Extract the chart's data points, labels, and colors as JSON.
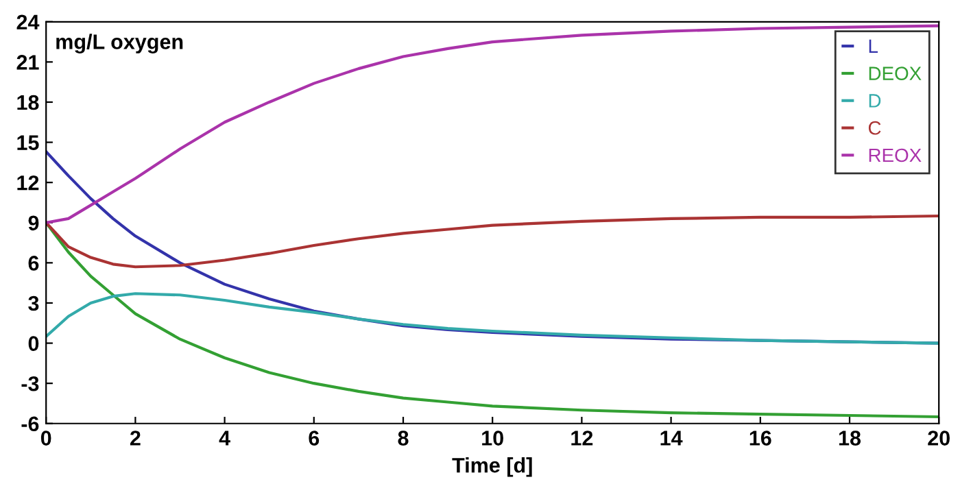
{
  "chart_data": {
    "type": "line",
    "xlabel": "Time [d]",
    "annotations": [
      "mg/L oxygen"
    ],
    "x": [
      0,
      0.5,
      1,
      1.5,
      2,
      3,
      4,
      5,
      6,
      7,
      8,
      9,
      10,
      12,
      14,
      16,
      18,
      20
    ],
    "series": [
      {
        "name": "L",
        "color": "#3333aa",
        "values": [
          14.3,
          12.5,
          10.8,
          9.3,
          8.0,
          6.0,
          4.4,
          3.3,
          2.4,
          1.8,
          1.3,
          1.0,
          0.8,
          0.5,
          0.3,
          0.2,
          0.1,
          0.0
        ]
      },
      {
        "name": "DEOX",
        "color": "#33a033",
        "values": [
          9,
          6.8,
          5.0,
          3.6,
          2.2,
          0.3,
          -1.1,
          -2.2,
          -3.0,
          -3.6,
          -4.1,
          -4.4,
          -4.7,
          -5.0,
          -5.2,
          -5.3,
          -5.4,
          -5.5
        ]
      },
      {
        "name": "D",
        "color": "#33aaaa",
        "values": [
          0.5,
          2.0,
          3.0,
          3.5,
          3.7,
          3.6,
          3.2,
          2.7,
          2.3,
          1.8,
          1.4,
          1.1,
          0.9,
          0.6,
          0.4,
          0.2,
          0.1,
          0.0
        ]
      },
      {
        "name": "C",
        "color": "#aa3333",
        "values": [
          9,
          7.2,
          6.4,
          5.9,
          5.7,
          5.8,
          6.2,
          6.7,
          7.3,
          7.8,
          8.2,
          8.5,
          8.8,
          9.1,
          9.3,
          9.4,
          9.4,
          9.5
        ]
      },
      {
        "name": "REOX",
        "color": "#aa33aa",
        "values": [
          9,
          9.3,
          10.3,
          11.3,
          12.3,
          14.5,
          16.5,
          18.0,
          19.4,
          20.5,
          21.4,
          22.0,
          22.5,
          23.0,
          23.3,
          23.5,
          23.6,
          23.7
        ]
      }
    ],
    "xlim": [
      0,
      20
    ],
    "xticks": [
      0,
      2,
      4,
      6,
      8,
      10,
      12,
      14,
      16,
      18,
      20
    ],
    "ylim": [
      -6,
      24
    ],
    "yticks": [
      -6,
      -3,
      0,
      3,
      6,
      9,
      12,
      15,
      18,
      21,
      24
    ],
    "grid": false,
    "legend": "top right",
    "marker": "none",
    "line_style": "solid"
  }
}
